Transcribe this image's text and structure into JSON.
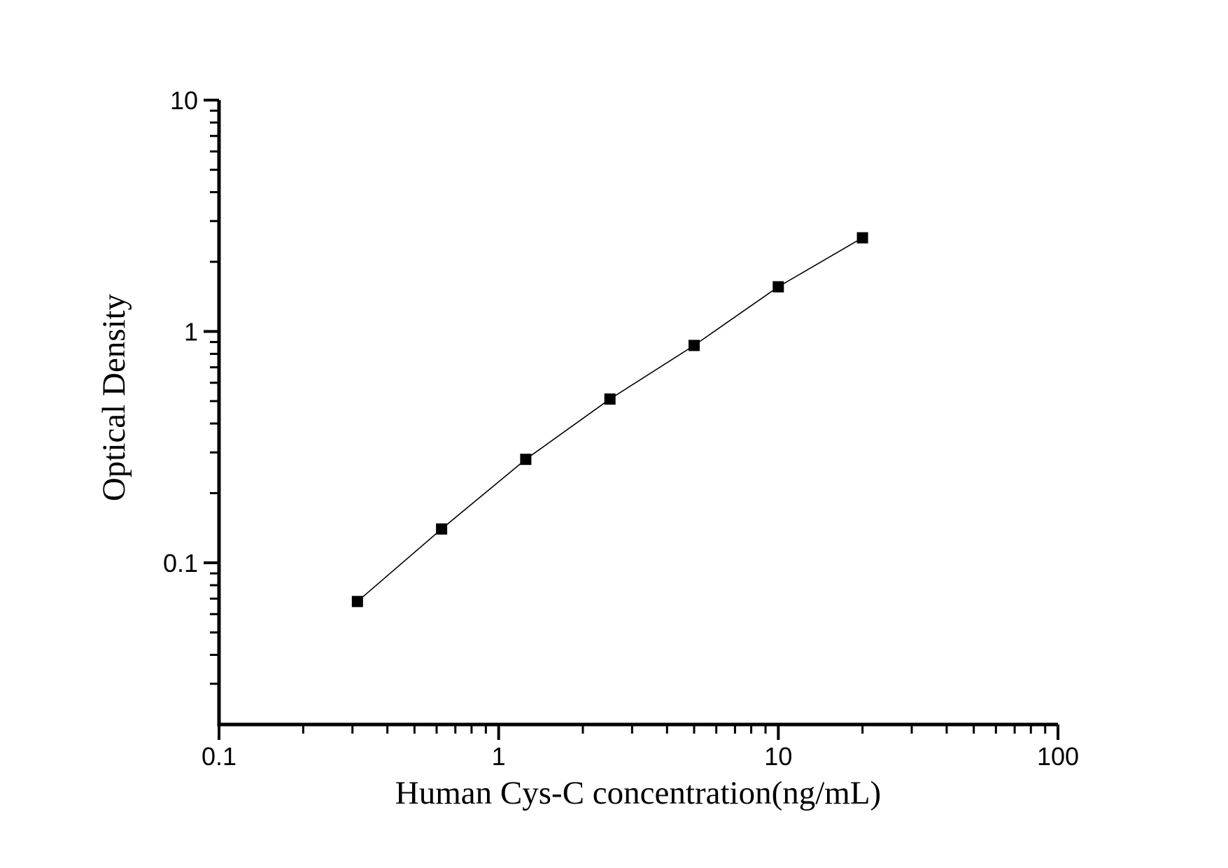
{
  "figure": {
    "background": "#FFFFFF",
    "foreground": "#000000"
  },
  "chart_data": {
    "type": "line",
    "title": "",
    "xlabel": "Human Cys-C concentration(ng/mL)",
    "ylabel": "Optical Density",
    "xscale": "log",
    "yscale": "log",
    "xlim": [
      0.1,
      100
    ],
    "ylim": [
      0.02,
      10
    ],
    "grid": false,
    "legend": "none",
    "x_ticks": [
      {
        "value": 0.1,
        "label": "0.1"
      },
      {
        "value": 1,
        "label": "1"
      },
      {
        "value": 10,
        "label": "10"
      },
      {
        "value": 100,
        "label": "100"
      }
    ],
    "y_ticks": [
      {
        "value": 10,
        "label": "10"
      },
      {
        "value": 1,
        "label": "1"
      },
      {
        "value": 0.1,
        "label": "0.1"
      }
    ],
    "series": [
      {
        "marker": "filled-square",
        "color": "#000000",
        "points": [
          {
            "x": 0.3125,
            "y": 0.068
          },
          {
            "x": 0.625,
            "y": 0.14
          },
          {
            "x": 1.25,
            "y": 0.28
          },
          {
            "x": 2.5,
            "y": 0.51
          },
          {
            "x": 5,
            "y": 0.87
          },
          {
            "x": 10,
            "y": 1.56
          },
          {
            "x": 20,
            "y": 2.54
          }
        ]
      }
    ]
  }
}
